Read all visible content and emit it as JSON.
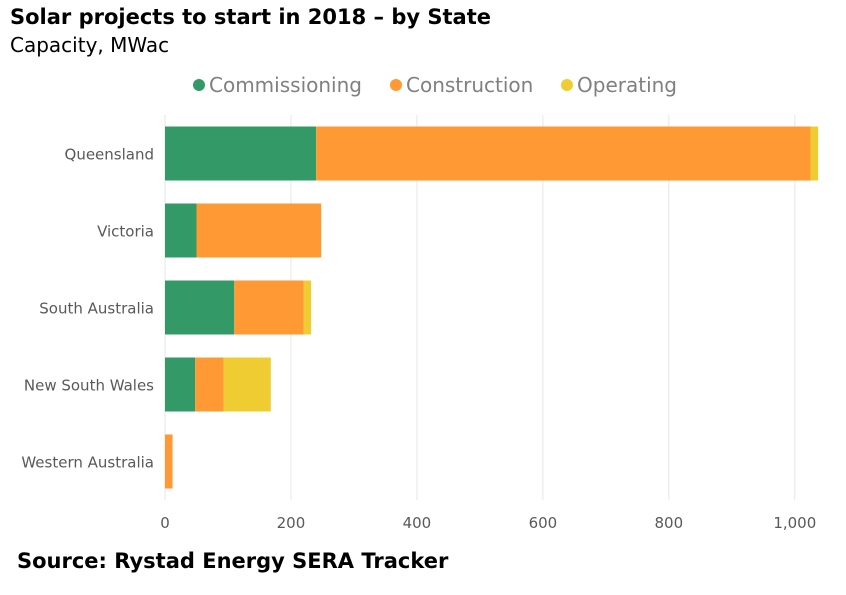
{
  "title": "Solar projects to start in 2018 – by State",
  "subtitle": "Capacity, MWac",
  "source": "Source: Rystad Energy SERA Tracker",
  "chart_data": {
    "type": "bar",
    "orientation": "horizontal",
    "stacked": true,
    "categories": [
      "Queensland",
      "Victoria",
      "South Australia",
      "New South Wales",
      "Western Australia"
    ],
    "series": [
      {
        "name": "Commissioning",
        "color": "#339966",
        "values": [
          240,
          50,
          110,
          48,
          0
        ]
      },
      {
        "name": "Construction",
        "color": "#ff9933",
        "values": [
          785,
          198,
          110,
          45,
          12
        ]
      },
      {
        "name": "Operating",
        "color": "#f0cc33",
        "values": [
          12,
          0,
          12,
          75,
          0
        ]
      }
    ],
    "xlim": [
      0,
      1040
    ],
    "xticks": [
      0,
      200,
      400,
      600,
      800,
      1000
    ],
    "xtick_labels": [
      "0",
      "200",
      "400",
      "600",
      "800",
      "1,000"
    ],
    "grid": "vertical",
    "legend": "top-center"
  }
}
